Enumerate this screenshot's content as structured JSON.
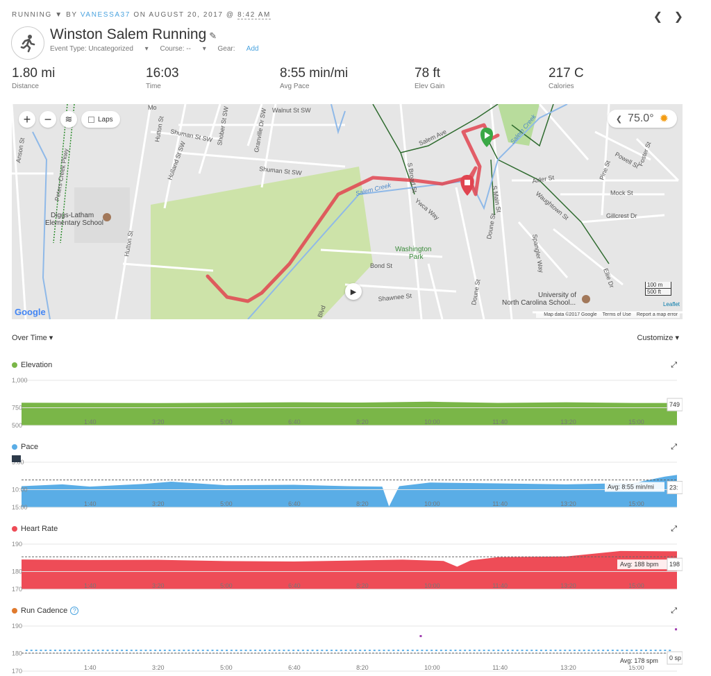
{
  "header": {
    "activity_type": "RUNNING",
    "by": "BY",
    "username": "VANESSA37",
    "on": "ON AUGUST 20, 2017 @",
    "time": "8:42 AM",
    "title": "Winston Salem Running",
    "event_type": "Event Type: Uncategorized",
    "course": "Course: --",
    "gear": "Gear:",
    "gear_add": "Add"
  },
  "stats": [
    {
      "value": "1.80 mi",
      "label": "Distance"
    },
    {
      "value": "16:03",
      "label": "Time"
    },
    {
      "value": "8:55 min/mi",
      "label": "Avg Pace"
    },
    {
      "value": "78 ft",
      "label": "Elev Gain"
    },
    {
      "value": "217 C",
      "label": "Calories"
    }
  ],
  "map": {
    "laps_label": "Laps",
    "temperature": "75.0°",
    "scale_m": "100 m",
    "scale_ft": "500 ft",
    "leaflet": "Leaflet",
    "google": "Google",
    "footer": {
      "data": "Map data ©2017 Google",
      "terms": "Terms of Use",
      "report": "Report a map error"
    },
    "labels": {
      "walnut": "Walnut St SW",
      "shuman1": "Shuman St SW",
      "shuman2": "Shuman St SW",
      "holland": "Holland St SW",
      "granville": "Granville Dr SW",
      "shober": "Shober St SW",
      "hutton1": "Hutton St",
      "hutton2": "Hutton St",
      "peters": "Peters Creek Pkwy",
      "diggs1": "Diggs-Latham",
      "diggs2": "Elementary School",
      "salem_creek1": "Salem Creek",
      "salem_creek2": "Salem Creek",
      "salem_ave": "Salem Ave",
      "washington1": "Washington",
      "washington2": "Park",
      "bond": "Bond St",
      "shawnee": "Shawnee St",
      "ywca": "Ywca Way",
      "broad": "S Broad St",
      "main": "S Main St",
      "doune1": "Doune St",
      "doune2": "Doune St",
      "alder": "Alder St",
      "waughtown": "Waughtown St",
      "pine": "Pine St",
      "powell": "Powell St",
      "foster": "Foster St",
      "mock": "Mock St",
      "gillcrest": "Gillcrest Dr",
      "spangler": "Spangler Way",
      "ellie": "Ellie Dr",
      "unc1": "University of",
      "unc2": "North Carolina School...",
      "blvd": "Blvd",
      "anson": "Anson St",
      "momo": "Mo"
    }
  },
  "controls": {
    "over_time": "Over Time ▾",
    "customize": "Customize ▾"
  },
  "x_ticks": [
    "1:40",
    "3:20",
    "5:00",
    "6:40",
    "8:20",
    "10:00",
    "11:40",
    "13:20",
    "15:00"
  ],
  "charts": {
    "elevation": {
      "name": "Elevation",
      "color": "#7ab648",
      "y_ticks": [
        "1,000",
        "750",
        "500"
      ],
      "cursor_value": "749"
    },
    "pace": {
      "name": "Pace",
      "color": "#5aade6",
      "y_ticks": [
        "5:00",
        "10:00",
        "15:00"
      ],
      "avg_label": "Avg: 8:55 min/mi",
      "cursor_value": "23:",
      "cursor_time": "03"
    },
    "heart_rate": {
      "name": "Heart Rate",
      "color": "#ee4c57",
      "y_ticks": [
        "190",
        "180",
        "170"
      ],
      "avg_label": "Avg: 188 bpm",
      "cursor_value": "198"
    },
    "cadence": {
      "name": "Run Cadence",
      "color": "#e07a2e",
      "help": "?",
      "y_ticks": [
        "190",
        "180",
        "170"
      ],
      "avg_label": "Avg: 178 spm",
      "cursor_value": "0 sp"
    }
  },
  "chart_data": [
    {
      "type": "area",
      "ylabel": "",
      "ylim": [
        500,
        1000
      ],
      "x": [
        0,
        100,
        200,
        300,
        400,
        500,
        600,
        700,
        800,
        900,
        963
      ],
      "series": [
        {
          "values": [
            752,
            750,
            748,
            752,
            757,
            754,
            763,
            750,
            757,
            749,
            749
          ]
        }
      ]
    },
    {
      "type": "area",
      "ylim": [
        5,
        15
      ],
      "x": [
        0,
        60,
        100,
        180,
        220,
        300,
        400,
        480,
        530,
        540,
        555,
        600,
        700,
        800,
        900,
        945,
        963
      ],
      "series": [
        {
          "values": [
            10.3,
            9.9,
            10.4,
            9.8,
            9.3,
            10.1,
            10.0,
            10.3,
            10.4,
            14.8,
            10.3,
            9.5,
            9.7,
            9.9,
            9.6,
            8.2,
            7.8
          ]
        }
      ]
    },
    {
      "type": "area",
      "ylim": [
        170,
        195
      ],
      "x": [
        0,
        100,
        200,
        300,
        400,
        500,
        560,
        620,
        640,
        660,
        700,
        800,
        880,
        963
      ],
      "series": [
        {
          "values": [
            186.5,
            186.2,
            186.3,
            185.6,
            185.4,
            186.0,
            186.4,
            185.7,
            182.5,
            186.0,
            187.8,
            188.2,
            191.2,
            191.0
          ]
        }
      ]
    },
    {
      "type": "scatter",
      "ylim": [
        170,
        190
      ],
      "x": [],
      "series": [
        {
          "values": []
        }
      ]
    }
  ]
}
